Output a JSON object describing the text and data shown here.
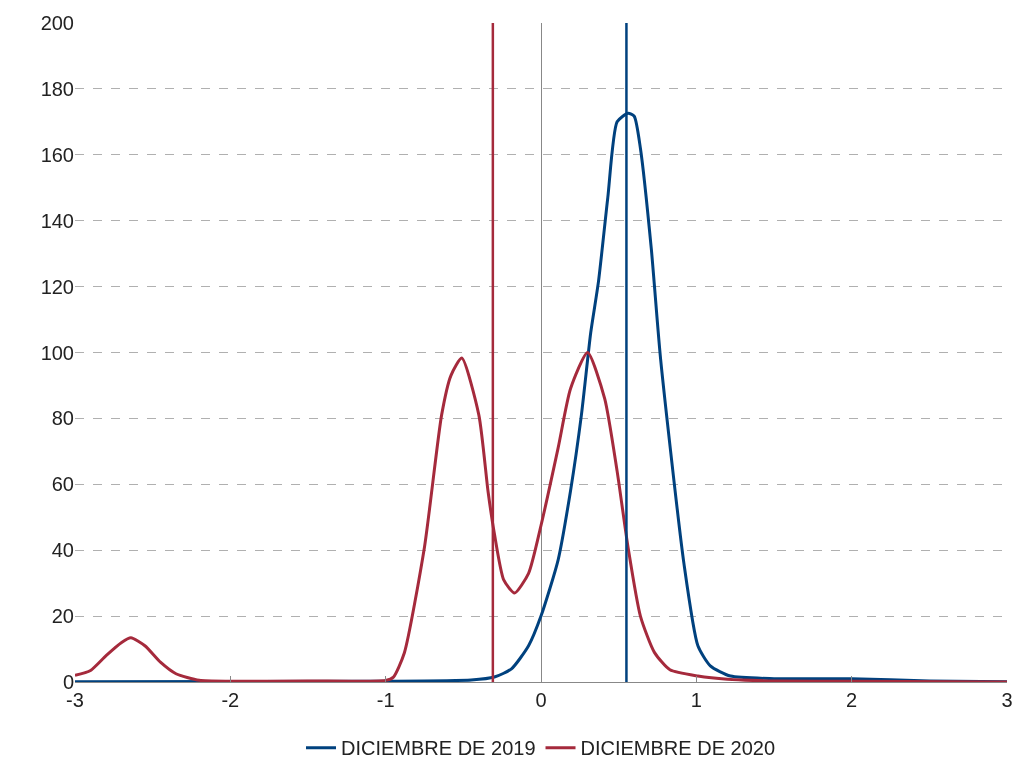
{
  "chart_data": {
    "type": "line",
    "xlim": [
      -3,
      3
    ],
    "xticks": [
      -3,
      -2,
      -1,
      0,
      1,
      2,
      3
    ],
    "ylim": [
      0,
      200
    ],
    "yticks": [
      0,
      20,
      40,
      60,
      80,
      100,
      120,
      140,
      160,
      180,
      200
    ],
    "grid": "y",
    "legend": "bottom",
    "marker": "none",
    "line_style": "solid",
    "series": [
      {
        "name": "DICIEMBRE DE 2019",
        "color": "#00417e",
        "x": [
          -3,
          -1,
          -0.45,
          -0.3,
          -0.19,
          -0.08,
          0,
          0.11,
          0.19,
          0.26,
          0.32,
          0.37,
          0.43,
          0.49,
          0.56,
          0.6,
          0.64,
          0.71,
          0.77,
          0.92,
          1.01,
          1.09,
          1.22,
          1.5,
          2,
          2.5,
          3
        ],
        "values": [
          0.1,
          0.2,
          0.6,
          1.5,
          4,
          11,
          20,
          37,
          58,
          81,
          106,
          121.5,
          147,
          170,
          172.6,
          171.7,
          162,
          131.5,
          98,
          36,
          11,
          4.9,
          1.8,
          1,
          1,
          0.3,
          0.1
        ]
      },
      {
        "name": "DICIEMBRE DE 2020",
        "color": "#a52a3c",
        "x": [
          -3,
          -2.9,
          -2.8,
          -2.7,
          -2.64,
          -2.55,
          -2.45,
          -2.35,
          -2.2,
          -2,
          -1.5,
          -1,
          -0.95,
          -0.88,
          -0.75,
          -0.64,
          -0.58,
          -0.51,
          -0.4,
          -0.34,
          -0.3,
          -0.24,
          -0.17,
          -0.08,
          0,
          0.11,
          0.19,
          0.3,
          0.41,
          0.49,
          0.56,
          0.64,
          0.73,
          0.83,
          1.01,
          1.2,
          1.5,
          2,
          3
        ],
        "values": [
          2,
          3.5,
          8,
          12,
          13.4,
          11,
          6,
          2.5,
          0.5,
          0.2,
          0.3,
          0.5,
          1.5,
          8.8,
          41,
          81,
          93,
          98.3,
          81,
          57.5,
          45,
          31,
          27,
          33,
          47.5,
          71,
          89,
          100,
          86,
          64,
          41,
          20,
          9,
          3.7,
          1.8,
          0.8,
          0.3,
          0.2,
          0
        ]
      }
    ],
    "ref_lines": [
      {
        "axis": "x",
        "value": -0.31,
        "color": "#a52a3c"
      },
      {
        "axis": "x",
        "value": 0.55,
        "color": "#00417e"
      }
    ]
  }
}
